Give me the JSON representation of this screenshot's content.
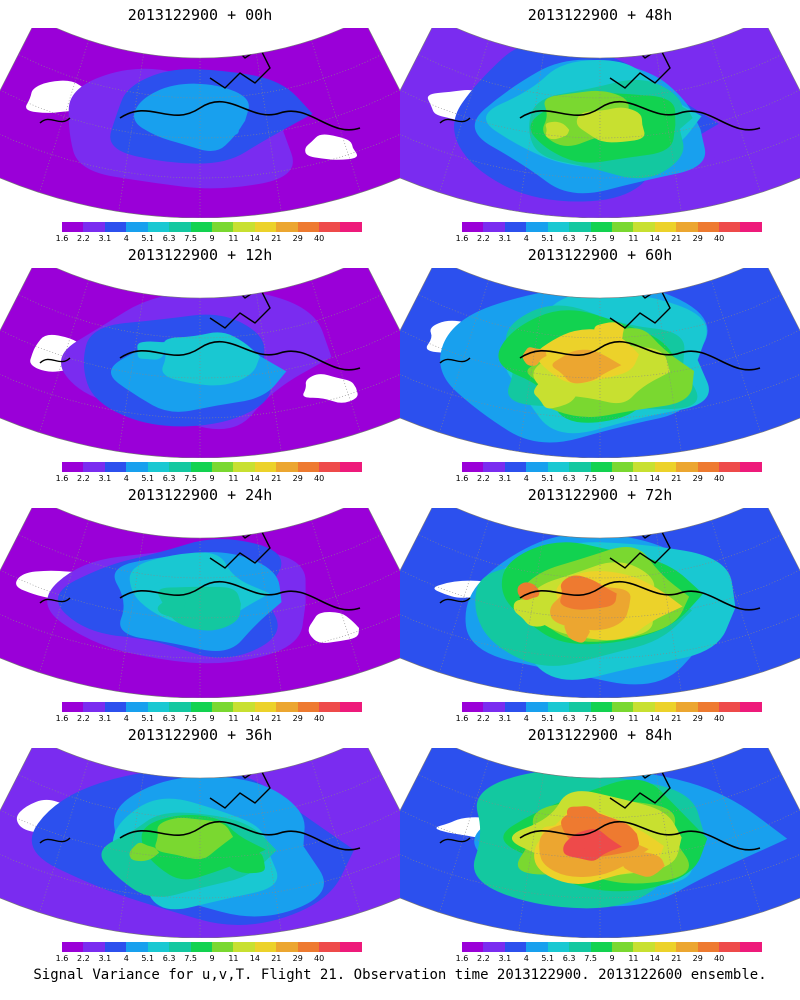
{
  "colorbar": {
    "tick_labels": [
      "1.6",
      "2.2",
      "3.1",
      "4",
      "5.1",
      "6.3",
      "7.5",
      "9",
      "11",
      "14",
      "21",
      "29",
      "40"
    ],
    "colors": [
      "#9a00d8",
      "#7a2cf0",
      "#2c50ee",
      "#18a0ee",
      "#19c8d2",
      "#13c8a0",
      "#12d250",
      "#7ad830",
      "#c8e030",
      "#ecd22a",
      "#eca630",
      "#ee7a30",
      "#ee4a4a",
      "#ee1a7a"
    ]
  },
  "panels": [
    {
      "title": "2013122900 + 00h",
      "intensity": 0
    },
    {
      "title": "2013122900 + 48h",
      "intensity": 4
    },
    {
      "title": "2013122900 + 12h",
      "intensity": 1
    },
    {
      "title": "2013122900 + 60h",
      "intensity": 5
    },
    {
      "title": "2013122900 + 24h",
      "intensity": 2
    },
    {
      "title": "2013122900 + 72h",
      "intensity": 6
    },
    {
      "title": "2013122900 + 36h",
      "intensity": 3
    },
    {
      "title": "2013122900 + 84h",
      "intensity": 7
    }
  ],
  "caption": "Signal Variance for u,v,T. Flight 21. Observation time 2013122900. 2013122600 ensemble."
}
